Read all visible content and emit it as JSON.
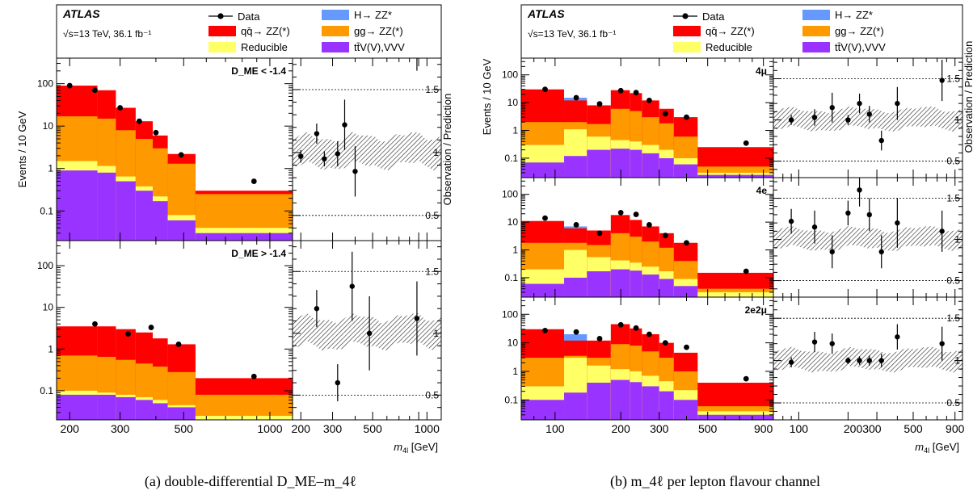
{
  "captions": {
    "a": "(a) double-differential D_ME–m_4ℓ",
    "b": "(b) m_4ℓ per lepton flavour channel"
  },
  "colors": {
    "qqZZ": "#ff0000",
    "ggZZ": "#ff9900",
    "reducible": "#ffff66",
    "ttV": "#9933ff",
    "higgs": "#6699ff",
    "band": "#555555"
  },
  "legend": {
    "data": "Data",
    "higgs": "H→ ZZ*",
    "qqZZ": "qq̄→ ZZ(*)",
    "ggZZ": "gg→ ZZ(*)",
    "reducible": "Reducible",
    "ttV": "tt̄V(V),VVV",
    "atlas": "ATLAS",
    "lumi": "√s=13 TeV, 36.1 fb⁻¹"
  },
  "chart_data": [
    {
      "type": "bar",
      "panel": "a",
      "ylabel_left": "Events / 10 GeV",
      "ylabel_right": "Observation / Prediction",
      "xlabel": "m_4l [GeV]",
      "x_ticks_left": [
        "200",
        "300",
        "500",
        "1000"
      ],
      "x_ticks_right": [
        "200",
        "300",
        "500",
        "1000"
      ],
      "y_ticks": [
        "0.1",
        "1",
        "10",
        "100"
      ],
      "ratio_ticks": [
        "0.5",
        "1",
        "1.5"
      ],
      "ratio_ylim": [
        0.3,
        1.75
      ],
      "xlim": [
        180,
        1200
      ],
      "ylim": [
        0.02,
        400
      ],
      "subplots": [
        {
          "label": "D_ME < -1.4",
          "bins": [
            [
              180,
              250
            ],
            [
              250,
              290
            ],
            [
              290,
              340
            ],
            [
              340,
              390
            ],
            [
              390,
              440
            ],
            [
              440,
              550
            ],
            [
              550,
              1200
            ]
          ],
          "stack": {
            "ttV": [
              0.9,
              0.8,
              0.5,
              0.3,
              0.17,
              0.06,
              0.03
            ],
            "reducible": [
              1.5,
              1.15,
              0.65,
              0.38,
              0.22,
              0.08,
              0.04
            ],
            "ggZZ": [
              17,
              15,
              8,
              5,
              3,
              1.3,
              0.25
            ],
            "qqZZ": [
              90,
              70,
              27,
              13,
              6,
              2.2,
              0.3
            ]
          },
          "data_x": [
            200,
            245,
            300,
            350,
            400,
            490,
            880
          ],
          "data_y": [
            90,
            70,
            27,
            13,
            7,
            2.1,
            0.5
          ],
          "ratio": [
            {
              "x": 200,
              "y": 0.97,
              "err": 0.05
            },
            {
              "x": 245,
              "y": 1.15,
              "err": 0.08
            },
            {
              "x": 270,
              "y": 0.95,
              "err": 0.06
            },
            {
              "x": 320,
              "y": 0.99,
              "err": 0.1
            },
            {
              "x": 350,
              "y": 1.22,
              "err": 0.2
            },
            {
              "x": 400,
              "y": 0.85,
              "err": 0.2
            },
            {
              "x": 880,
              "y": 1.85,
              "err": 0.2
            }
          ]
        },
        {
          "label": "D_ME > -1.4",
          "bins": [
            [
              180,
              250
            ],
            [
              250,
              290
            ],
            [
              290,
              340
            ],
            [
              340,
              390
            ],
            [
              390,
              440
            ],
            [
              440,
              550
            ],
            [
              550,
              1200
            ]
          ],
          "stack": {
            "ttV": [
              0.08,
              0.08,
              0.07,
              0.06,
              0.05,
              0.04,
              0.02
            ],
            "reducible": [
              0.1,
              0.09,
              0.08,
              0.07,
              0.06,
              0.045,
              0.025
            ],
            "ggZZ": [
              0.7,
              0.65,
              0.55,
              0.45,
              0.38,
              0.28,
              0.08
            ],
            "qqZZ": [
              3.5,
              3.5,
              3.0,
              2.5,
              1.8,
              1.3,
              0.2
            ]
          },
          "data_x": [
            245,
            320,
            385,
            480,
            880
          ],
          "data_y": [
            4,
            2.3,
            3.3,
            1.3,
            0.22
          ],
          "ratio": [
            {
              "x": 245,
              "y": 1.2,
              "err": 0.15
            },
            {
              "x": 320,
              "y": 0.6,
              "err": 0.15
            },
            {
              "x": 385,
              "y": 1.38,
              "err": 0.28
            },
            {
              "x": 480,
              "y": 1.0,
              "err": 0.3
            },
            {
              "x": 880,
              "y": 1.12,
              "err": 0.3
            }
          ]
        }
      ]
    },
    {
      "type": "bar",
      "panel": "b",
      "ylabel_left": "Events / 10 GeV",
      "ylabel_right": "Observation / Prediction",
      "xlabel": "m_4l [GeV]",
      "x_ticks_left": [
        "100",
        "200",
        "300",
        "500",
        "900"
      ],
      "x_ticks_right": [
        "100",
        "200300",
        "500",
        "900"
      ],
      "y_ticks": [
        "0.1",
        "1",
        "10",
        "100"
      ],
      "ratio_ticks": [
        "0.5",
        "1",
        "1.5"
      ],
      "ratio_ylim": [
        0.3,
        1.75
      ],
      "xlim": [
        70,
        1000
      ],
      "ylim": [
        0.02,
        400
      ],
      "subplots": [
        {
          "label": "4μ",
          "bins": [
            [
              70,
              110
            ],
            [
              110,
              140
            ],
            [
              140,
              180
            ],
            [
              180,
              220
            ],
            [
              220,
              250
            ],
            [
              250,
              300
            ],
            [
              300,
              350
            ],
            [
              350,
              450
            ],
            [
              450,
              1000
            ]
          ],
          "stack": {
            "ttV": [
              0.07,
              0.12,
              0.2,
              0.22,
              0.2,
              0.15,
              0.1,
              0.06,
              0.025
            ],
            "reducible": [
              0.3,
              1.1,
              0.6,
              0.45,
              0.4,
              0.3,
              0.2,
              0.1,
              0.03
            ],
            "ggZZ": [
              2,
              2,
              1.7,
              6,
              5,
              3,
              1.8,
              0.6,
              0.05
            ],
            "qqZZ": [
              30,
              12,
              8,
              28,
              22,
              12,
              6,
              3,
              0.25
            ],
            "higgs": [
              0,
              15,
              0,
              0,
              0,
              0,
              0,
              0,
              0
            ]
          },
          "data_x": [
            90,
            125,
            160,
            200,
            235,
            270,
            320,
            400,
            750
          ],
          "data_y": [
            30,
            15,
            9,
            27,
            23,
            12,
            4,
            3,
            0.35
          ],
          "ratio": [
            {
              "x": 90,
              "y": 1.0,
              "err": 0.06
            },
            {
              "x": 125,
              "y": 1.03,
              "err": 0.1
            },
            {
              "x": 160,
              "y": 1.15,
              "err": 0.18
            },
            {
              "x": 200,
              "y": 1.0,
              "err": 0.06
            },
            {
              "x": 235,
              "y": 1.2,
              "err": 0.12
            },
            {
              "x": 270,
              "y": 1.07,
              "err": 0.1
            },
            {
              "x": 320,
              "y": 0.75,
              "err": 0.12
            },
            {
              "x": 400,
              "y": 1.2,
              "err": 0.2
            },
            {
              "x": 750,
              "y": 1.48,
              "err": 0.25
            }
          ]
        },
        {
          "label": "4e",
          "bins": [
            [
              70,
              110
            ],
            [
              110,
              140
            ],
            [
              140,
              180
            ],
            [
              180,
              220
            ],
            [
              220,
              250
            ],
            [
              250,
              300
            ],
            [
              300,
              350
            ],
            [
              350,
              450
            ],
            [
              450,
              1000
            ]
          ],
          "stack": {
            "ttV": [
              0.06,
              0.1,
              0.17,
              0.2,
              0.18,
              0.13,
              0.09,
              0.05,
              0.02
            ],
            "reducible": [
              0.2,
              1,
              0.55,
              0.42,
              0.35,
              0.25,
              0.17,
              0.09,
              0.03
            ],
            "ggZZ": [
              1.8,
              1.8,
              1.5,
              4,
              3,
              2,
              1.2,
              0.4,
              0.04
            ],
            "qqZZ": [
              11,
              6,
              5,
              18,
              12,
              7,
              4,
              1.8,
              0.15
            ],
            "higgs": [
              0,
              7,
              0,
              0,
              0,
              0,
              0,
              0,
              0
            ]
          },
          "data_x": [
            90,
            125,
            160,
            200,
            235,
            270,
            320,
            400,
            750
          ],
          "data_y": [
            14,
            8,
            4,
            22,
            19,
            8,
            3.3,
            1.8,
            0.17
          ],
          "ratio": [
            {
              "x": 90,
              "y": 1.22,
              "err": 0.15
            },
            {
              "x": 125,
              "y": 1.15,
              "err": 0.2
            },
            {
              "x": 160,
              "y": 0.85,
              "err": 0.2
            },
            {
              "x": 200,
              "y": 1.32,
              "err": 0.15
            },
            {
              "x": 235,
              "y": 1.6,
              "err": 0.2
            },
            {
              "x": 270,
              "y": 1.3,
              "err": 0.2
            },
            {
              "x": 320,
              "y": 0.85,
              "err": 0.2
            },
            {
              "x": 400,
              "y": 1.2,
              "err": 0.3
            },
            {
              "x": 750,
              "y": 1.1,
              "err": 0.25
            }
          ]
        },
        {
          "label": "2e2μ",
          "bins": [
            [
              70,
              110
            ],
            [
              110,
              140
            ],
            [
              140,
              180
            ],
            [
              180,
              220
            ],
            [
              220,
              250
            ],
            [
              250,
              300
            ],
            [
              300,
              350
            ],
            [
              350,
              450
            ],
            [
              450,
              1000
            ]
          ],
          "stack": {
            "ttV": [
              0.1,
              0.18,
              0.4,
              0.5,
              0.42,
              0.3,
              0.2,
              0.1,
              0.03
            ],
            "reducible": [
              0.3,
              3,
              1.6,
              1.2,
              1,
              0.7,
              0.45,
              0.22,
              0.04
            ],
            "ggZZ": [
              3,
              3.5,
              3,
              9,
              8,
              5,
              3,
              1,
              0.06
            ],
            "qqZZ": [
              30,
              12,
              12,
              45,
              32,
              20,
              10,
              4.5,
              0.4
            ],
            "higgs": [
              0,
              20,
              0,
              0,
              0,
              0,
              0,
              0,
              0
            ]
          },
          "data_x": [
            90,
            125,
            160,
            200,
            235,
            270,
            320,
            400,
            750
          ],
          "data_y": [
            27,
            24,
            14,
            43,
            33,
            20,
            10,
            7,
            0.55
          ],
          "ratio": [
            {
              "x": 90,
              "y": 0.98,
              "err": 0.06
            },
            {
              "x": 125,
              "y": 1.22,
              "err": 0.12
            },
            {
              "x": 160,
              "y": 1.2,
              "err": 0.12
            },
            {
              "x": 200,
              "y": 1.0,
              "err": 0.04
            },
            {
              "x": 235,
              "y": 1.0,
              "err": 0.05
            },
            {
              "x": 270,
              "y": 1.0,
              "err": 0.06
            },
            {
              "x": 320,
              "y": 1.0,
              "err": 0.08
            },
            {
              "x": 400,
              "y": 1.28,
              "err": 0.15
            },
            {
              "x": 750,
              "y": 1.2,
              "err": 0.2
            }
          ]
        }
      ]
    }
  ]
}
